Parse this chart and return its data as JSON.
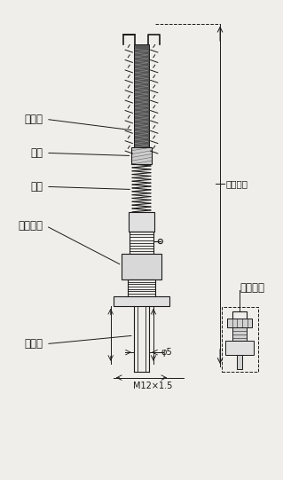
{
  "bg_color": "#f0eeea",
  "line_color": "#1a1a1a",
  "labels": {
    "thermocouple": "热电偶",
    "ferrule": "卡套",
    "spring": "弹簧",
    "lock_ferrule": "锁紧卡套",
    "protection_tube": "保护管",
    "ferrule_screw": "卡套螺钉",
    "connect_bolt": "连接螺栓"
  },
  "dim_phi5": "φ5",
  "dim_m12": "M12×1.5",
  "title_fontsize": 9,
  "label_fontsize": 8.5
}
